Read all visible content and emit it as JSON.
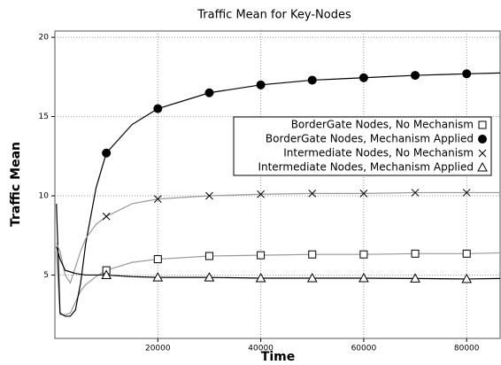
{
  "chart_data": {
    "type": "line",
    "title": "Traffic Mean for Key-Nodes",
    "x_label": "Time",
    "y_label": "Traffic Mean",
    "x": [
      300,
      1000,
      2000,
      3000,
      4000,
      5000,
      6000,
      8000,
      10000,
      15000,
      20000,
      30000,
      40000,
      50000,
      60000,
      70000,
      80000,
      86500
    ],
    "series": [
      {
        "name": "BorderGate Nodes, No Mechanism",
        "color": "#999999",
        "marker": "square",
        "values": [
          6.5,
          2.5,
          2.5,
          2.6,
          3.3,
          4.0,
          4.4,
          4.9,
          5.3,
          5.8,
          6.0,
          6.2,
          6.25,
          6.3,
          6.3,
          6.35,
          6.35,
          6.4
        ]
      },
      {
        "name": "BorderGate Nodes, Mechanism Applied",
        "color": "#000000",
        "marker": "circle",
        "values": [
          9.5,
          2.6,
          2.4,
          2.4,
          2.8,
          4.5,
          7,
          10.5,
          12.7,
          14.5,
          15.5,
          16.5,
          17.0,
          17.3,
          17.45,
          17.6,
          17.7,
          17.75
        ]
      },
      {
        "name": "Intermediate Nodes, No Mechanism",
        "color": "#999999",
        "marker": "x",
        "values": [
          7,
          6.5,
          5.0,
          4.5,
          5.5,
          6.5,
          7.3,
          8.2,
          8.7,
          9.5,
          9.8,
          10.0,
          10.1,
          10.15,
          10.15,
          10.2,
          10.2,
          10.2
        ]
      },
      {
        "name": "Intermediate Nodes, Mechanism Applied",
        "color": "#000000",
        "marker": "triangle",
        "values": [
          6.8,
          6.0,
          5.3,
          5.2,
          5.1,
          5.05,
          5.0,
          5.0,
          5.0,
          4.9,
          4.85,
          4.85,
          4.8,
          4.8,
          4.8,
          4.78,
          4.75,
          4.78
        ]
      }
    ],
    "xlim": [
      0,
      86500
    ],
    "ylim": [
      1,
      20.4
    ],
    "xticks": [
      20000,
      40000,
      60000,
      80000
    ],
    "yticks": [
      5,
      10,
      15,
      20
    ],
    "grid": true,
    "legend": "right"
  }
}
